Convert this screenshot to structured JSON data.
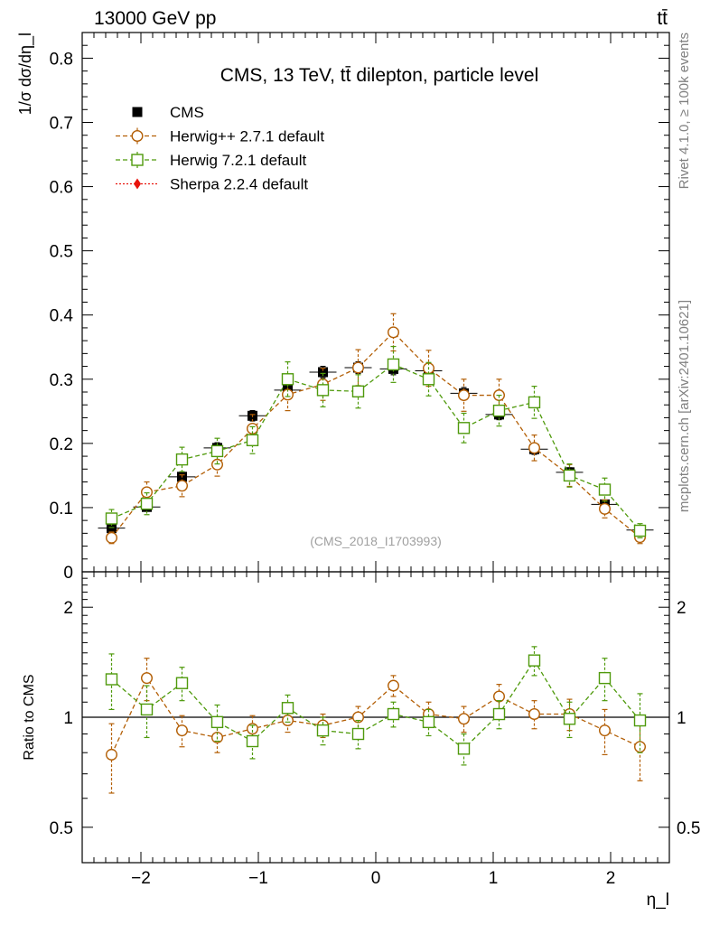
{
  "header": {
    "left": "13000 GeV pp",
    "right": "tt̄"
  },
  "side_labels": {
    "rivet": "Rivet 4.1.0, ≥ 100k events",
    "mcplots": "mcplots.cern.ch [arXiv:2401.10621]"
  },
  "chart_data": {
    "type": "scatter",
    "title": "CMS, 13 TeV, tt̄ dilepton, particle level",
    "watermark": "(CMS_2018_I1703993)",
    "ylabel_main": "1/σ dσ/dη_l",
    "ylabel_ratio": "Ratio to CMS",
    "xlabel": "η_l",
    "xlim": [
      -2.5,
      2.5
    ],
    "ylim_main": [
      0,
      0.84
    ],
    "ylim_ratio": [
      0.4,
      2.5
    ],
    "x_ticks": [
      -2,
      -1,
      0,
      1,
      2
    ],
    "x_tick_labels": [
      "−2",
      "−1",
      "0",
      "1",
      "2"
    ],
    "y_ticks_main": [
      0.1,
      0.2,
      0.3,
      0.4,
      0.5,
      0.6,
      0.7,
      0.8
    ],
    "y_tick_labels_main": [
      "0.1",
      "0.2",
      "0.3",
      "0.4",
      "0.5",
      "0.6",
      "0.7",
      "0.8"
    ],
    "y_zero_label": "0",
    "y_ticks_ratio": [
      0.5,
      1,
      2
    ],
    "y_tick_labels_ratio": [
      "0.5",
      "1",
      "2"
    ],
    "x": [
      -2.25,
      -1.95,
      -1.65,
      -1.35,
      -1.05,
      -0.75,
      -0.45,
      -0.15,
      0.15,
      0.45,
      0.75,
      1.05,
      1.35,
      1.65,
      1.95,
      2.25
    ],
    "series": [
      {
        "name": "CMS",
        "color": "#000000",
        "marker": "square-filled",
        "values": [
          0.068,
          0.101,
          0.148,
          0.193,
          0.243,
          0.283,
          0.311,
          0.318,
          0.316,
          0.313,
          0.278,
          0.245,
          0.191,
          0.155,
          0.105,
          0.065
        ],
        "errors": [
          0.005,
          0.006,
          0.007,
          0.008,
          0.008,
          0.009,
          0.009,
          0.009,
          0.009,
          0.009,
          0.009,
          0.008,
          0.008,
          0.007,
          0.006,
          0.005
        ]
      },
      {
        "name": "Herwig++ 2.7.1 default",
        "color": "#b35f06",
        "marker": "circle-open",
        "values": [
          0.053,
          0.124,
          0.134,
          0.167,
          0.223,
          0.276,
          0.292,
          0.318,
          0.373,
          0.317,
          0.275,
          0.275,
          0.193,
          0.15,
          0.098,
          0.054
        ],
        "errors": [
          0.009,
          0.016,
          0.017,
          0.018,
          0.022,
          0.025,
          0.025,
          0.028,
          0.029,
          0.028,
          0.025,
          0.025,
          0.02,
          0.017,
          0.014,
          0.01
        ],
        "ratio": [
          0.79,
          1.28,
          0.92,
          0.88,
          0.93,
          0.98,
          0.95,
          1.0,
          1.22,
          1.02,
          0.99,
          1.14,
          1.02,
          1.02,
          0.92,
          0.83
        ],
        "ratio_errors": [
          0.17,
          0.17,
          0.09,
          0.08,
          0.08,
          0.07,
          0.07,
          0.07,
          0.08,
          0.08,
          0.08,
          0.09,
          0.09,
          0.1,
          0.13,
          0.16
        ]
      },
      {
        "name": "Herwig 7.2.1 default",
        "color": "#4f9a0c",
        "marker": "square-open",
        "values": [
          0.083,
          0.106,
          0.175,
          0.188,
          0.205,
          0.3,
          0.283,
          0.281,
          0.323,
          0.3,
          0.224,
          0.251,
          0.264,
          0.15,
          0.128,
          0.064
        ],
        "errors": [
          0.014,
          0.017,
          0.019,
          0.02,
          0.021,
          0.027,
          0.026,
          0.026,
          0.028,
          0.026,
          0.023,
          0.024,
          0.025,
          0.018,
          0.018,
          0.011
        ],
        "ratio": [
          1.27,
          1.05,
          1.24,
          0.97,
          0.86,
          1.06,
          0.92,
          0.9,
          1.02,
          0.97,
          0.82,
          1.02,
          1.43,
          0.99,
          1.28,
          0.98
        ],
        "ratio_errors": [
          0.22,
          0.17,
          0.13,
          0.11,
          0.09,
          0.09,
          0.08,
          0.08,
          0.08,
          0.08,
          0.08,
          0.09,
          0.13,
          0.11,
          0.17,
          0.18
        ]
      },
      {
        "name": "Sherpa 2.2.4 default",
        "color": "#e8140c",
        "marker": "diamond-filled",
        "values": [],
        "errors": []
      }
    ]
  }
}
